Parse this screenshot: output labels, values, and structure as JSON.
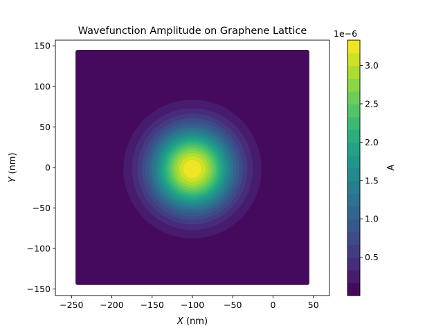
{
  "chart_data": {
    "type": "heatmap",
    "subtype": "filled-contour",
    "title": "Wavefunction Amplitude on Graphene Lattice",
    "xlabel_var": "X",
    "xlabel_unit": " (nm)",
    "ylabel_var": "Y",
    "ylabel_unit": " (nm)",
    "xlim": [
      -270,
      70
    ],
    "ylim": [
      -158,
      157
    ],
    "data_extent": {
      "x": [
        -245,
        45
      ],
      "y": [
        -145,
        145
      ]
    },
    "x_ticks": [
      -250,
      -200,
      -150,
      -100,
      -50,
      0,
      50
    ],
    "x_tick_labels": [
      "−250",
      "−200",
      "−150",
      "−100",
      "−50",
      "0",
      "50"
    ],
    "y_ticks": [
      150,
      100,
      50,
      0,
      -50,
      -100,
      -150
    ],
    "y_tick_labels": [
      "150",
      "100",
      "50",
      "0",
      "−50",
      "−100",
      "−150"
    ],
    "peak": {
      "x": -100,
      "y": -2,
      "value": 3.33e-06
    },
    "gaussian_sigma_nm": 35,
    "colorbar": {
      "label": "A",
      "scale_label": "1e−6",
      "min": 0.0,
      "max": 3.33,
      "levels": 20,
      "colormap": "viridis",
      "ticks": [
        0.5,
        1.0,
        1.5,
        2.0,
        2.5,
        3.0
      ],
      "tick_labels": [
        "0.5",
        "1.0",
        "1.5",
        "2.0",
        "2.5",
        "3.0"
      ]
    },
    "viridis_stops": [
      "#440154",
      "#482475",
      "#414487",
      "#355f8d",
      "#2a788e",
      "#21918c",
      "#22a884",
      "#44bf70",
      "#7ad151",
      "#bddf26",
      "#fde725"
    ]
  }
}
